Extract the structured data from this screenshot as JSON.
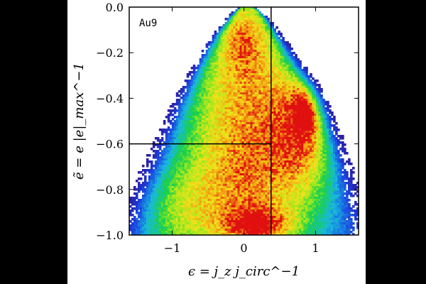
{
  "chart_data": {
    "type": "heatmap",
    "panel_label": "Au9",
    "xlabel": "ϵ = j_z j_circ^−1",
    "ylabel": "ẽ = e |e|_max^−1",
    "xlim": [
      -1.6,
      1.6
    ],
    "ylim": [
      -1.0,
      0.0
    ],
    "x_ticks": [
      {
        "value": -1,
        "label": "−1"
      },
      {
        "value": 0,
        "label": "0"
      },
      {
        "value": 1,
        "label": "1"
      }
    ],
    "y_ticks": [
      {
        "value": 0.0,
        "label": "0.0"
      },
      {
        "value": -0.2,
        "label": "−0.2"
      },
      {
        "value": -0.4,
        "label": "−0.4"
      },
      {
        "value": -0.6,
        "label": "−0.6"
      },
      {
        "value": -0.8,
        "label": "−0.8"
      },
      {
        "value": -1.0,
        "label": "−1.0"
      }
    ],
    "colormap": [
      "#ffffff",
      "#3a0a7a",
      "#1a3fe0",
      "#19b8e0",
      "#19d04a",
      "#9ee81e",
      "#f2e21a",
      "#f39a12",
      "#e01010"
    ],
    "density_components": [
      {
        "x": 0.0,
        "y": -0.78,
        "sx": 0.55,
        "sy": 0.22,
        "amp": 0.55
      },
      {
        "x": 0.2,
        "y": -0.96,
        "sx": 0.35,
        "sy": 0.06,
        "amp": 0.55
      },
      {
        "x": 0.95,
        "y": -0.42,
        "sx": 0.15,
        "sy": 0.09,
        "amp": 0.85
      },
      {
        "x": 0.85,
        "y": -0.55,
        "sx": 0.35,
        "sy": 0.2,
        "amp": 0.55
      },
      {
        "x": 0.0,
        "y": -0.35,
        "sx": 0.6,
        "sy": 0.22,
        "amp": 0.45
      },
      {
        "x": 0.0,
        "y": -0.12,
        "sx": 0.25,
        "sy": 0.12,
        "amp": 0.4
      },
      {
        "x": -0.9,
        "y": -0.9,
        "sx": 0.4,
        "sy": 0.15,
        "amp": 0.3
      }
    ],
    "divider_lines": [
      {
        "orientation": "vertical",
        "x": 0.38,
        "y_from": -1.0,
        "y_to": 0.0
      },
      {
        "orientation": "horizontal",
        "y": -0.6,
        "x_from": -1.6,
        "x_to": 0.38
      }
    ],
    "grid": false,
    "legend": "none"
  }
}
